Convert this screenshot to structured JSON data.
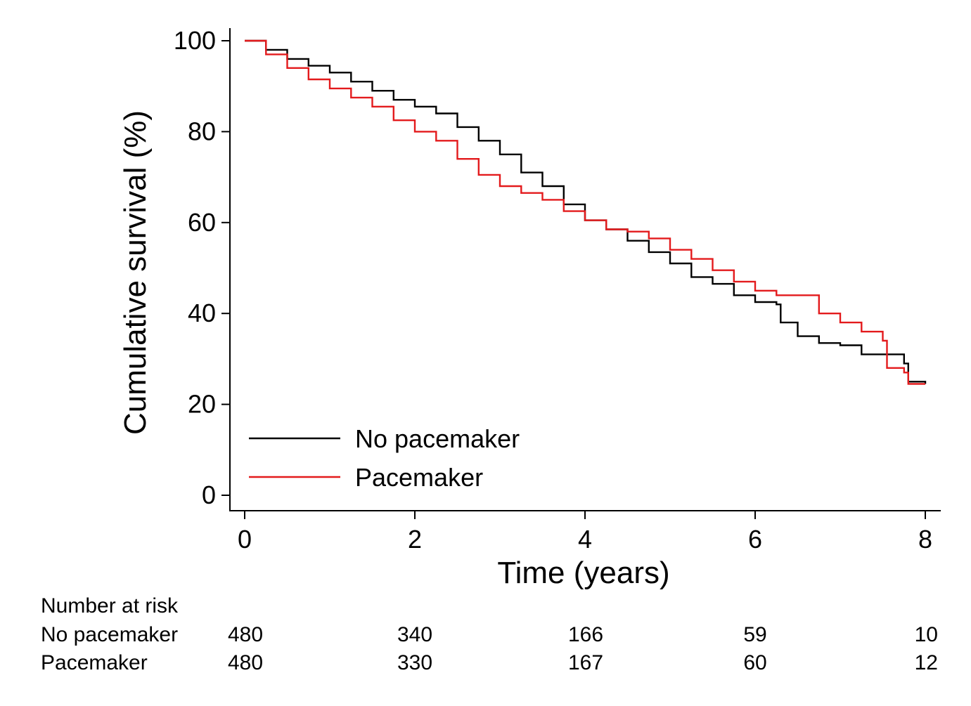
{
  "chart_data": {
    "type": "line",
    "subtype": "step",
    "xlabel": "Time (years)",
    "ylabel": "Cumulative survival (%)",
    "xlim": [
      0,
      8
    ],
    "ylim": [
      0,
      100
    ],
    "x_ticks": [
      0,
      2,
      4,
      6,
      8
    ],
    "y_ticks": [
      0,
      20,
      40,
      60,
      80,
      100
    ],
    "grid": false,
    "legend_position": "bottom-left",
    "series": [
      {
        "name": "No pacemaker",
        "color": "#000000",
        "x": [
          0,
          0.1,
          0.25,
          0.5,
          0.75,
          1.0,
          1.25,
          1.5,
          1.75,
          2.0,
          2.25,
          2.5,
          2.75,
          3.0,
          3.25,
          3.5,
          3.75,
          4.0,
          4.25,
          4.5,
          4.75,
          5.0,
          5.25,
          5.5,
          5.75,
          6.0,
          6.25,
          6.3,
          6.5,
          6.75,
          7.0,
          7.25,
          7.5,
          7.75,
          7.8,
          8.0
        ],
        "y": [
          100,
          100,
          98,
          96,
          94.5,
          93,
          91,
          89,
          87,
          85.5,
          84,
          81,
          78,
          75,
          71,
          68,
          64,
          60.5,
          58.5,
          56,
          53.5,
          51,
          48,
          46.5,
          44,
          42.5,
          42,
          38,
          35,
          33.5,
          33,
          31,
          31,
          29,
          25,
          24.5
        ]
      },
      {
        "name": "Pacemaker",
        "color": "#e31a1c",
        "x": [
          0,
          0.25,
          0.5,
          0.75,
          1.0,
          1.25,
          1.5,
          1.75,
          2.0,
          2.25,
          2.5,
          2.75,
          3.0,
          3.25,
          3.5,
          3.75,
          4.0,
          4.25,
          4.5,
          4.75,
          5.0,
          5.25,
          5.5,
          5.75,
          6.0,
          6.25,
          6.5,
          6.75,
          7.0,
          7.25,
          7.5,
          7.55,
          7.75,
          7.8,
          8.0
        ],
        "y": [
          100,
          97,
          94,
          91.5,
          89.5,
          87.5,
          85.5,
          82.5,
          80,
          78,
          74,
          70.5,
          68,
          66.5,
          65,
          62.5,
          60.5,
          58.5,
          58,
          56.5,
          54,
          52,
          49.5,
          47,
          45,
          44,
          44,
          40,
          38,
          36,
          34,
          28,
          27,
          24.5,
          24.5
        ]
      }
    ],
    "risk_table": {
      "title": "Number at risk",
      "times": [
        0,
        2,
        4,
        6,
        8
      ],
      "rows": [
        {
          "label": "No pacemaker",
          "values": [
            480,
            340,
            166,
            59,
            10
          ]
        },
        {
          "label": "Pacemaker",
          "values": [
            480,
            330,
            167,
            60,
            12
          ]
        }
      ]
    }
  }
}
